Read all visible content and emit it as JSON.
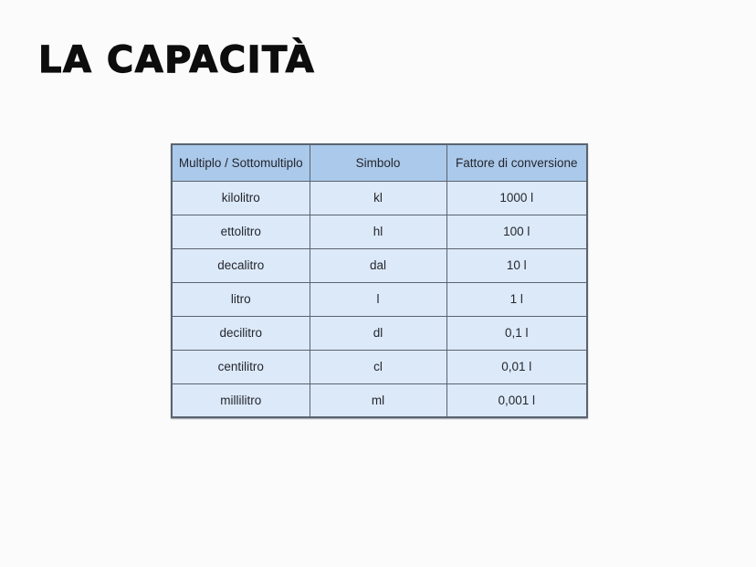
{
  "slide": {
    "title": "LA CAPACITÀ"
  },
  "table": {
    "headers": [
      "Multiplo / Sottomultiplo",
      "Simbolo",
      "Fattore di conversione"
    ],
    "rows": [
      [
        "kilolitro",
        "kl",
        "1000 l"
      ],
      [
        "ettolitro",
        "hl",
        "100 l"
      ],
      [
        "decalitro",
        "dal",
        "10 l"
      ],
      [
        "litro",
        "l",
        "1 l"
      ],
      [
        "decilitro",
        "dl",
        "0,1 l"
      ],
      [
        "centilitro",
        "cl",
        "0,01 l"
      ],
      [
        "millilitro",
        "ml",
        "0,001 l"
      ]
    ],
    "colors": {
      "header_bg": "#abc9ea",
      "row_bg": "#dce9f8",
      "border": "#5a6370",
      "title_text": "#0d0d0d"
    }
  }
}
